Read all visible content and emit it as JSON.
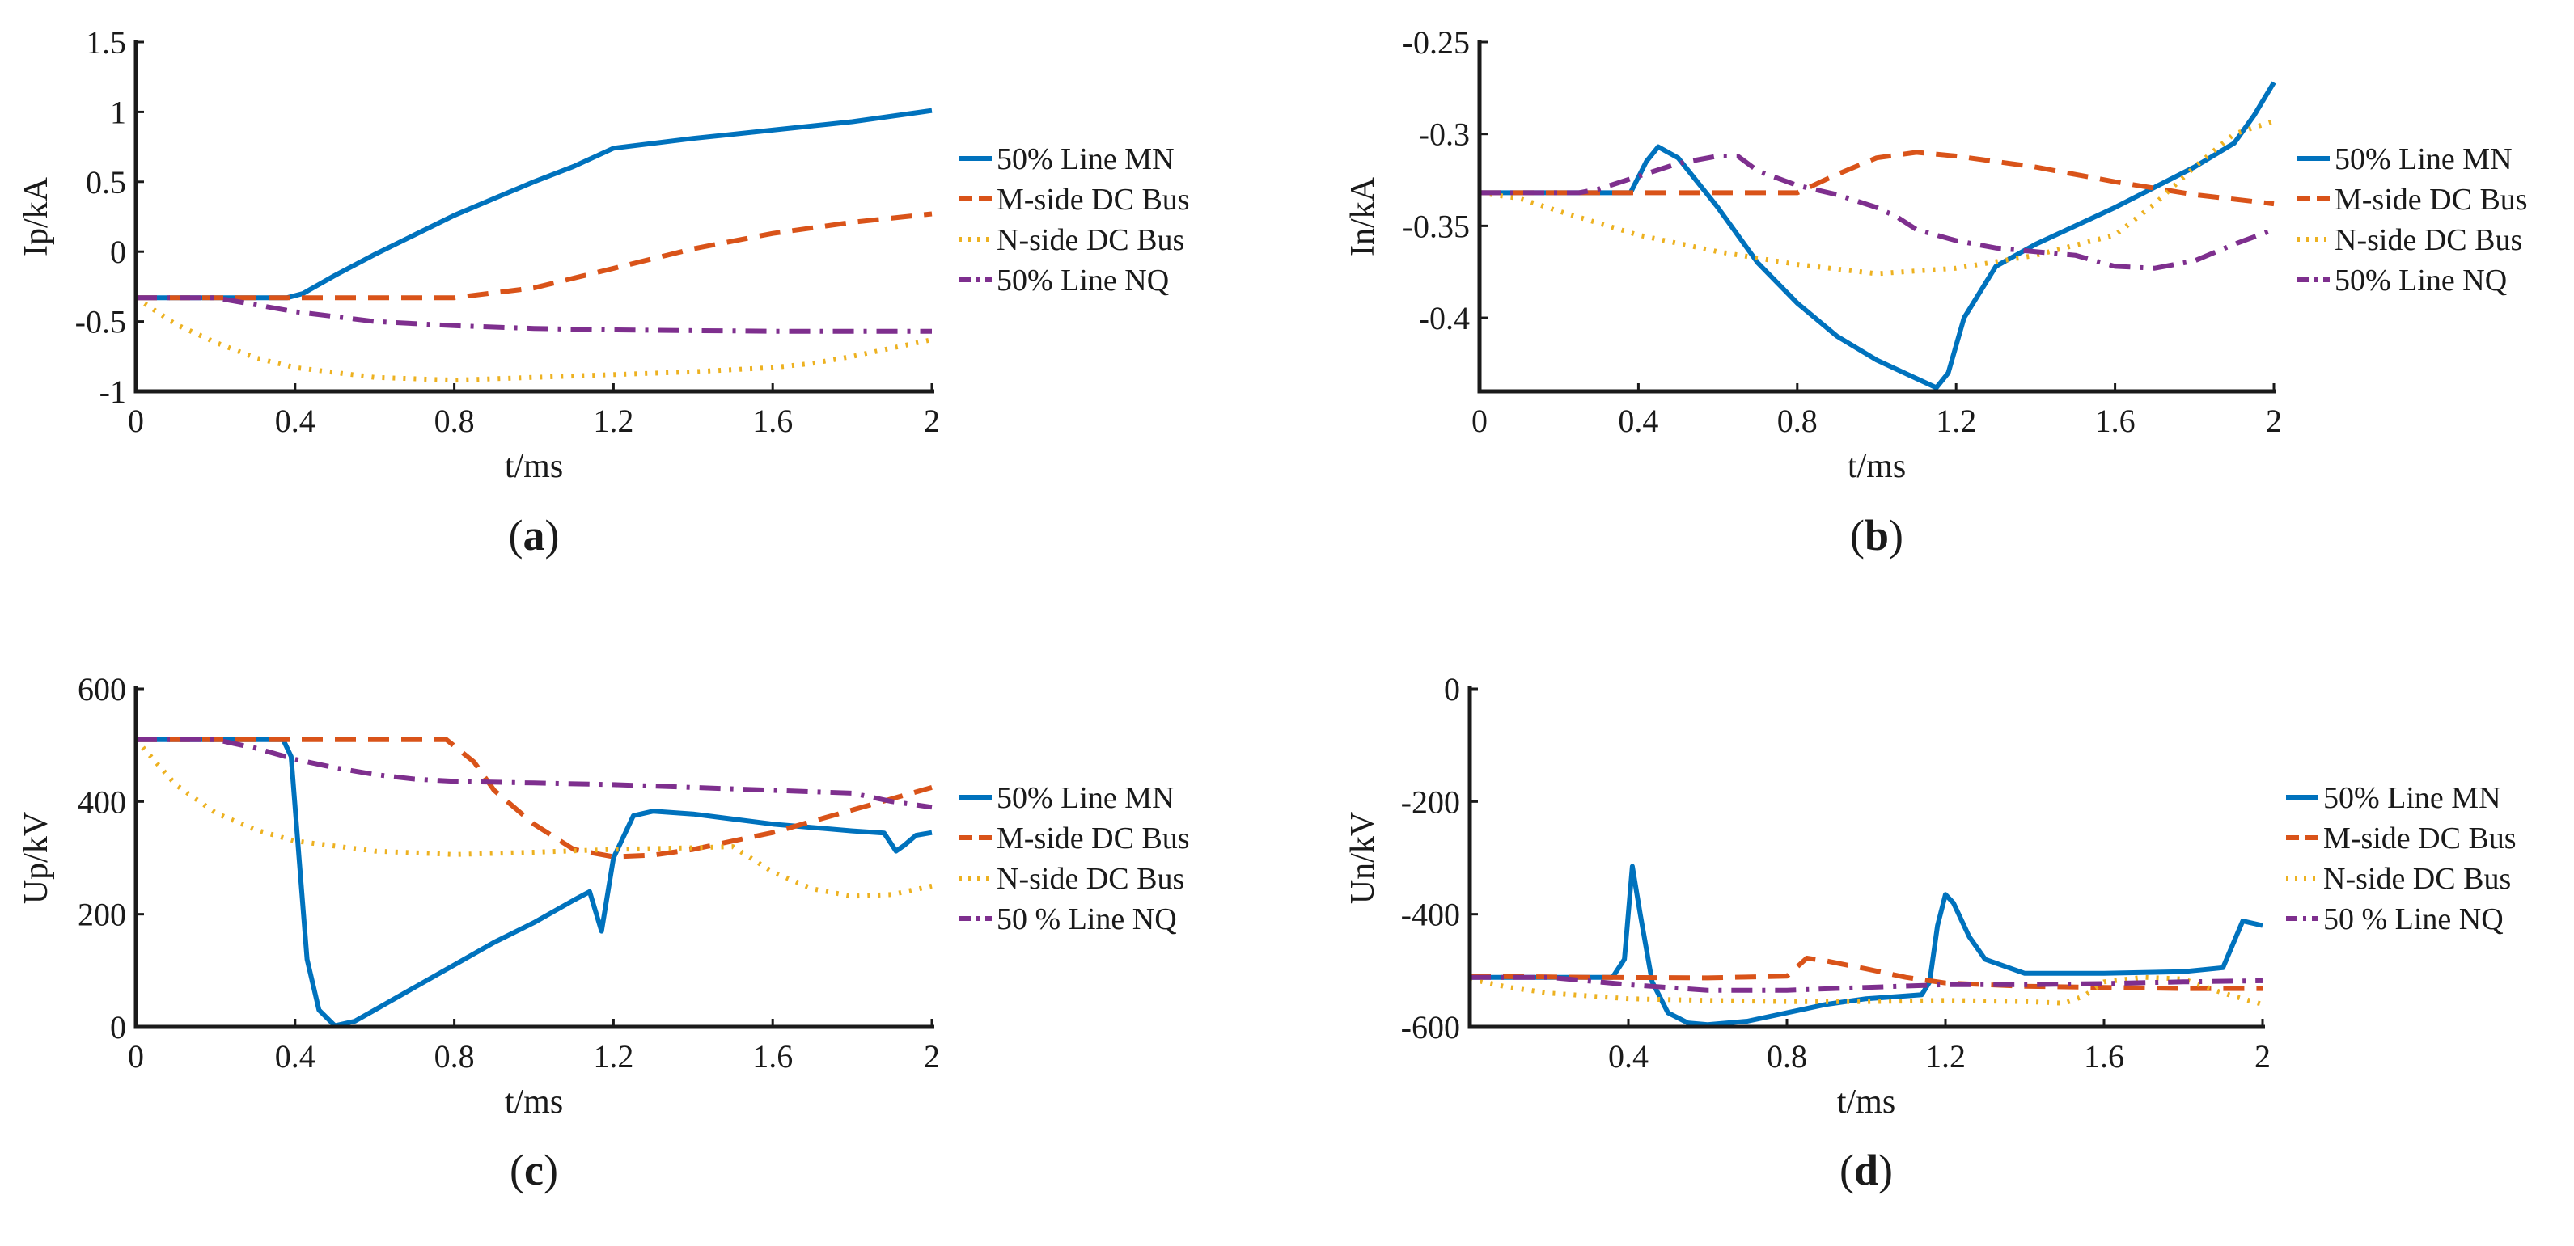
{
  "colors": {
    "blue": "#0072BD",
    "orange": "#D95319",
    "yellow": "#EDB120",
    "purple": "#7E2F8E"
  },
  "chart_data": [
    {
      "id": "a",
      "type": "line",
      "caption": "a",
      "xlabel": "t/ms",
      "ylabel": "Ip/kA",
      "xlim": [
        0,
        2
      ],
      "ylim": [
        -1,
        1.5
      ],
      "xticks": [
        0,
        0.4,
        0.8,
        1.2,
        1.6,
        2
      ],
      "xtick_labels": [
        "0",
        "0.4",
        "0.8",
        "1.2",
        "1.6",
        "2"
      ],
      "yticks": [
        -1,
        -0.5,
        0,
        0.5,
        1,
        1.5
      ],
      "ytick_labels": [
        "-1",
        "-0.5",
        "0",
        "0.5",
        "1",
        "1.5"
      ],
      "series": [
        {
          "name": "50% Line MN",
          "color": "blue",
          "dash": "solid",
          "x": [
            0,
            0.38,
            0.42,
            0.5,
            0.6,
            0.7,
            0.8,
            0.9,
            1.0,
            1.1,
            1.2,
            1.4,
            1.6,
            1.8,
            2.0
          ],
          "y": [
            -0.33,
            -0.33,
            -0.3,
            -0.17,
            -0.02,
            0.12,
            0.26,
            0.38,
            0.5,
            0.61,
            0.74,
            0.81,
            0.87,
            0.93,
            1.01
          ]
        },
        {
          "name": "M-side DC Bus",
          "color": "orange",
          "dash": "dashed",
          "x": [
            0,
            0.8,
            1.0,
            1.2,
            1.4,
            1.6,
            1.8,
            2.0
          ],
          "y": [
            -0.33,
            -0.33,
            -0.26,
            -0.12,
            0.02,
            0.13,
            0.21,
            0.27
          ]
        },
        {
          "name": "N-side DC Bus",
          "color": "yellow",
          "dash": "dotted",
          "x": [
            0,
            0.1,
            0.2,
            0.3,
            0.4,
            0.6,
            0.8,
            1.0,
            1.2,
            1.4,
            1.6,
            1.7,
            1.8,
            1.9,
            2.0
          ],
          "y": [
            -0.33,
            -0.52,
            -0.65,
            -0.76,
            -0.83,
            -0.9,
            -0.92,
            -0.9,
            -0.88,
            -0.86,
            -0.83,
            -0.8,
            -0.75,
            -0.69,
            -0.63
          ]
        },
        {
          "name": "50% Line NQ",
          "color": "purple",
          "dash": "dashdot",
          "x": [
            0,
            0.2,
            0.4,
            0.6,
            0.8,
            1.0,
            1.2,
            1.6,
            2.0
          ],
          "y": [
            -0.33,
            -0.33,
            -0.43,
            -0.5,
            -0.53,
            -0.55,
            -0.56,
            -0.57,
            -0.57
          ]
        }
      ]
    },
    {
      "id": "b",
      "type": "line",
      "caption": "b",
      "xlabel": "t/ms",
      "ylabel": "In/kA",
      "xlim": [
        0,
        2
      ],
      "ylim": [
        -0.44,
        -0.25
      ],
      "xticks": [
        0,
        0.4,
        0.8,
        1.2,
        1.6,
        2
      ],
      "xtick_labels": [
        "0",
        "0.4",
        "0.8",
        "1.2",
        "1.6",
        "2"
      ],
      "yticks": [
        -0.4,
        -0.35,
        -0.3,
        -0.25
      ],
      "ytick_labels": [
        "-0.4",
        "-0.35",
        "-0.3",
        "-0.25"
      ],
      "series": [
        {
          "name": "50% Line MN",
          "color": "blue",
          "dash": "solid",
          "x": [
            0,
            0.38,
            0.42,
            0.45,
            0.5,
            0.6,
            0.7,
            0.8,
            0.9,
            1.0,
            1.1,
            1.15,
            1.18,
            1.22,
            1.3,
            1.4,
            1.6,
            1.8,
            1.9,
            1.95,
            2.0
          ],
          "y": [
            -0.332,
            -0.332,
            -0.315,
            -0.307,
            -0.313,
            -0.34,
            -0.37,
            -0.392,
            -0.41,
            -0.423,
            -0.433,
            -0.438,
            -0.43,
            -0.4,
            -0.372,
            -0.36,
            -0.34,
            -0.318,
            -0.305,
            -0.29,
            -0.272
          ]
        },
        {
          "name": "M-side DC Bus",
          "color": "orange",
          "dash": "dashed",
          "x": [
            0,
            0.8,
            0.9,
            1.0,
            1.1,
            1.2,
            1.4,
            1.6,
            1.8,
            2.0
          ],
          "y": [
            -0.332,
            -0.332,
            -0.322,
            -0.313,
            -0.31,
            -0.312,
            -0.318,
            -0.326,
            -0.333,
            -0.338
          ]
        },
        {
          "name": "N-side DC Bus",
          "color": "yellow",
          "dash": "dotted",
          "x": [
            0,
            0.1,
            0.2,
            0.4,
            0.6,
            0.8,
            1.0,
            1.2,
            1.4,
            1.6,
            1.7,
            1.8,
            1.9,
            2.0
          ],
          "y": [
            -0.332,
            -0.335,
            -0.342,
            -0.355,
            -0.364,
            -0.371,
            -0.376,
            -0.373,
            -0.366,
            -0.355,
            -0.338,
            -0.318,
            -0.3,
            -0.293
          ]
        },
        {
          "name": "50% Line NQ",
          "color": "purple",
          "dash": "dashdot",
          "x": [
            0,
            0.25,
            0.3,
            0.4,
            0.5,
            0.6,
            0.65,
            0.7,
            0.8,
            0.9,
            1.0,
            1.05,
            1.1,
            1.2,
            1.3,
            1.4,
            1.5,
            1.6,
            1.7,
            1.8,
            1.9,
            2.0
          ],
          "y": [
            -0.332,
            -0.332,
            -0.33,
            -0.323,
            -0.316,
            -0.312,
            -0.312,
            -0.32,
            -0.328,
            -0.333,
            -0.34,
            -0.345,
            -0.352,
            -0.358,
            -0.362,
            -0.364,
            -0.366,
            -0.372,
            -0.373,
            -0.369,
            -0.36,
            -0.352
          ]
        }
      ]
    },
    {
      "id": "c",
      "type": "line",
      "caption": "c",
      "xlabel": "t/ms",
      "ylabel": "Up/kV",
      "xlim": [
        0,
        2
      ],
      "ylim": [
        0,
        600
      ],
      "xticks": [
        0,
        0.4,
        0.8,
        1.2,
        1.6,
        2
      ],
      "xtick_labels": [
        "0",
        "0.4",
        "0.8",
        "1.2",
        "1.6",
        "2"
      ],
      "yticks": [
        0,
        200,
        400,
        600
      ],
      "ytick_labels": [
        "0",
        "200",
        "400",
        "600"
      ],
      "series": [
        {
          "name": "50% Line MN",
          "color": "blue",
          "dash": "solid",
          "x": [
            0,
            0.37,
            0.39,
            0.41,
            0.43,
            0.46,
            0.5,
            0.55,
            0.6,
            0.7,
            0.8,
            0.9,
            1.0,
            1.1,
            1.14,
            1.17,
            1.2,
            1.25,
            1.3,
            1.4,
            1.6,
            1.8,
            1.88,
            1.91,
            1.93,
            1.96,
            2.0
          ],
          "y": [
            510,
            510,
            480,
            300,
            120,
            30,
            2,
            10,
            30,
            70,
            110,
            150,
            185,
            225,
            240,
            170,
            300,
            375,
            383,
            378,
            360,
            348,
            344,
            312,
            322,
            340,
            345
          ]
        },
        {
          "name": "M-side DC Bus",
          "color": "orange",
          "dash": "dashed",
          "x": [
            0,
            0.78,
            0.85,
            0.9,
            1.0,
            1.1,
            1.2,
            1.3,
            1.4,
            1.5,
            1.6,
            1.7,
            1.8,
            1.9,
            2.0
          ],
          "y": [
            510,
            510,
            470,
            420,
            360,
            315,
            302,
            305,
            315,
            330,
            345,
            365,
            385,
            405,
            425
          ]
        },
        {
          "name": "N-side DC Bus",
          "color": "yellow",
          "dash": "dotted",
          "x": [
            0,
            0.1,
            0.2,
            0.3,
            0.4,
            0.6,
            0.8,
            1.0,
            1.2,
            1.4,
            1.5,
            1.6,
            1.7,
            1.8,
            1.9,
            2.0
          ],
          "y": [
            510,
            430,
            380,
            350,
            330,
            312,
            306,
            310,
            315,
            318,
            320,
            275,
            245,
            232,
            235,
            250
          ]
        },
        {
          "name": "50 % Line NQ",
          "color": "purple",
          "dash": "dashdot",
          "x": [
            0,
            0.2,
            0.3,
            0.4,
            0.5,
            0.6,
            0.7,
            0.8,
            1.0,
            1.2,
            1.4,
            1.6,
            1.8,
            1.9,
            2.0
          ],
          "y": [
            510,
            510,
            495,
            475,
            460,
            448,
            440,
            436,
            433,
            430,
            425,
            420,
            415,
            400,
            390
          ]
        }
      ]
    },
    {
      "id": "d",
      "type": "line",
      "caption": "d",
      "xlabel": "t/ms",
      "ylabel": "Un/kV",
      "xlim": [
        0,
        2
      ],
      "ylim": [
        -600,
        0
      ],
      "xticks": [
        0.4,
        0.8,
        1.2,
        1.6,
        2
      ],
      "xtick_labels": [
        "0.4",
        "0.8",
        "1.2",
        "1.6",
        "2"
      ],
      "yticks": [
        -600,
        -400,
        -200,
        0
      ],
      "ytick_labels": [
        "-600",
        "-400",
        "-200",
        "0"
      ],
      "series": [
        {
          "name": "50% Line MN",
          "color": "blue",
          "dash": "solid",
          "x": [
            0,
            0.36,
            0.39,
            0.41,
            0.43,
            0.46,
            0.5,
            0.55,
            0.6,
            0.7,
            0.8,
            0.9,
            1.0,
            1.1,
            1.14,
            1.16,
            1.18,
            1.2,
            1.22,
            1.26,
            1.3,
            1.4,
            1.6,
            1.8,
            1.9,
            1.95,
            2.0
          ],
          "y": [
            -512,
            -512,
            -480,
            -315,
            -400,
            -520,
            -575,
            -593,
            -596,
            -590,
            -575,
            -560,
            -550,
            -545,
            -543,
            -520,
            -420,
            -365,
            -380,
            -440,
            -480,
            -505,
            -505,
            -502,
            -495,
            -412,
            -420
          ]
        },
        {
          "name": "M-side DC Bus",
          "color": "orange",
          "dash": "dashed",
          "x": [
            0,
            0.3,
            0.6,
            0.8,
            0.85,
            0.9,
            1.0,
            1.1,
            1.2,
            1.4,
            1.6,
            1.8,
            2.0
          ],
          "y": [
            -510,
            -512,
            -513,
            -510,
            -478,
            -483,
            -497,
            -512,
            -522,
            -528,
            -530,
            -532,
            -532
          ]
        },
        {
          "name": "N-side DC Bus",
          "color": "yellow",
          "dash": "dotted",
          "x": [
            0,
            0.1,
            0.2,
            0.3,
            0.4,
            0.6,
            0.8,
            1.0,
            1.2,
            1.4,
            1.5,
            1.55,
            1.6,
            1.7,
            1.8,
            1.9,
            2.0
          ],
          "y": [
            -515,
            -530,
            -540,
            -545,
            -550,
            -553,
            -555,
            -555,
            -553,
            -555,
            -558,
            -545,
            -520,
            -512,
            -515,
            -540,
            -560
          ]
        },
        {
          "name": "50 % Line NQ",
          "color": "purple",
          "dash": "dashdot",
          "x": [
            0,
            0.2,
            0.4,
            0.6,
            0.8,
            1.0,
            1.2,
            1.4,
            1.6,
            1.8,
            2.0
          ],
          "y": [
            -512,
            -512,
            -525,
            -535,
            -535,
            -530,
            -525,
            -525,
            -523,
            -520,
            -518
          ]
        }
      ]
    }
  ]
}
